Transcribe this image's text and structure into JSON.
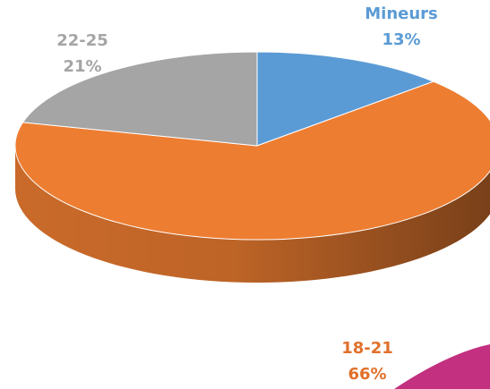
{
  "chart_data": {
    "type": "pie",
    "categories": [
      "Mineurs",
      "18-21",
      "22-25"
    ],
    "values": [
      13,
      66,
      21
    ],
    "value_labels": [
      "13%",
      "66%",
      "21%"
    ],
    "colors": [
      "#5b9bd5",
      "#ed7d31",
      "#a5a5a5"
    ]
  }
}
